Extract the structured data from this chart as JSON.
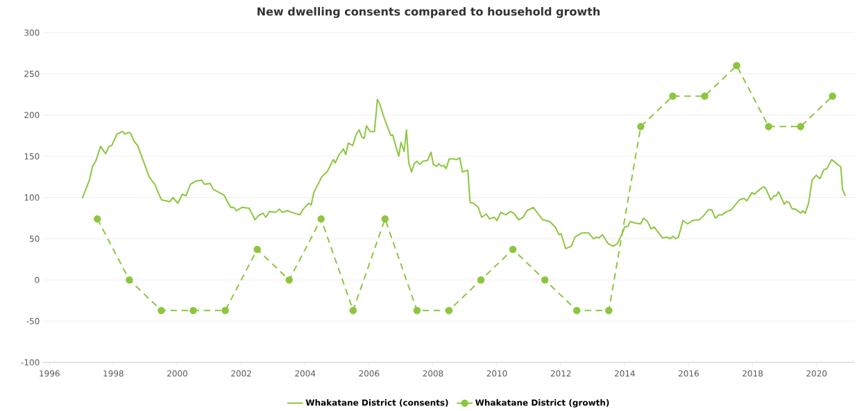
{
  "chart_data": {
    "type": "line",
    "title": "New dwelling consents compared to household growth",
    "xlim": [
      1995.8,
      2021.2
    ],
    "xticks": [
      1996,
      1998,
      2000,
      2002,
      2004,
      2006,
      2008,
      2010,
      2012,
      2014,
      2016,
      2018,
      2020
    ],
    "ylim": [
      -100,
      300
    ],
    "yticks": [
      -100,
      -50,
      0,
      50,
      100,
      150,
      200,
      250,
      300
    ],
    "grid": "y",
    "legend": "bottom",
    "series": [
      {
        "name": "Whakatane District (consents)",
        "color": "#8cc63e",
        "marker": "none",
        "line_style": "solid",
        "x": [
          1997.03,
          1997.25,
          1997.35,
          1997.45,
          1997.6,
          1997.76,
          1997.86,
          1997.95,
          1998.11,
          1998.29,
          1998.36,
          1998.47,
          1998.54,
          1998.65,
          1998.76,
          1998.97,
          1999.12,
          1999.3,
          1999.39,
          1999.51,
          1999.77,
          1999.86,
          2000.02,
          2000.16,
          2000.27,
          2000.41,
          2000.59,
          2000.77,
          2000.85,
          2001.03,
          2001.12,
          2001.46,
          2001.67,
          2001.77,
          2001.85,
          2002.03,
          2002.25,
          2002.43,
          2002.54,
          2002.68,
          2002.77,
          2002.88,
          2003.08,
          2003.19,
          2003.29,
          2003.44,
          2003.58,
          2003.83,
          2003.94,
          2004.12,
          2004.19,
          2004.27,
          2004.52,
          2004.7,
          2004.88,
          2004.94,
          2005.06,
          2005.2,
          2005.27,
          2005.35,
          2005.49,
          2005.6,
          2005.69,
          2005.78,
          2005.85,
          2005.92,
          2006.03,
          2006.17,
          2006.26,
          2006.33,
          2006.46,
          2006.68,
          2006.74,
          2006.84,
          2006.93,
          2007.0,
          2007.1,
          2007.17,
          2007.24,
          2007.33,
          2007.41,
          2007.5,
          2007.58,
          2007.69,
          2007.83,
          2007.94,
          2008.01,
          2008.12,
          2008.18,
          2008.26,
          2008.34,
          2008.41,
          2008.51,
          2008.62,
          2008.73,
          2008.84,
          2008.92,
          2009.09,
          2009.16,
          2009.27,
          2009.42,
          2009.52,
          2009.67,
          2009.77,
          2009.92,
          2010.0,
          2010.12,
          2010.28,
          2010.42,
          2010.53,
          2010.68,
          2010.82,
          2010.94,
          2011.14,
          2011.43,
          2011.65,
          2011.83,
          2011.94,
          2012.01,
          2012.15,
          2012.33,
          2012.44,
          2012.65,
          2012.87,
          2013.02,
          2013.12,
          2013.2,
          2013.3,
          2013.48,
          2013.63,
          2013.77,
          2013.95,
          2013.99,
          2014.1,
          2014.17,
          2014.31,
          2014.49,
          2014.59,
          2014.71,
          2014.82,
          2014.92,
          2015.18,
          2015.32,
          2015.43,
          2015.5,
          2015.59,
          2015.68,
          2015.82,
          2015.97,
          2016.11,
          2016.33,
          2016.47,
          2016.61,
          2016.72,
          2016.83,
          2016.94,
          2017.04,
          2017.19,
          2017.33,
          2017.58,
          2017.73,
          2017.82,
          2017.98,
          2018.05,
          2018.23,
          2018.34,
          2018.41,
          2018.57,
          2018.67,
          2018.74,
          2018.81,
          2018.99,
          2019.06,
          2019.14,
          2019.24,
          2019.34,
          2019.5,
          2019.57,
          2019.64,
          2019.75,
          2019.86,
          2019.99,
          2020.11,
          2020.23,
          2020.32,
          2020.47,
          2020.76,
          2020.81,
          2020.9
        ],
        "values": [
          99,
          121,
          138,
          144,
          162,
          153,
          162,
          163,
          177,
          180,
          177,
          179,
          178,
          168,
          163,
          141,
          125,
          116,
          107,
          97,
          95,
          100,
          93,
          104,
          102,
          116,
          120,
          121,
          116,
          117,
          110,
          103,
          88,
          88,
          84,
          88,
          87,
          73,
          78,
          81,
          76,
          83,
          82,
          86,
          82,
          84,
          82,
          79,
          86,
          93,
          91,
          106,
          125,
          132,
          146,
          142,
          152,
          159,
          152,
          166,
          163,
          177,
          182,
          173,
          172,
          187,
          180,
          180,
          219,
          214,
          198,
          175,
          176,
          162,
          150,
          167,
          156,
          182,
          142,
          131,
          141,
          144,
          140,
          144,
          145,
          155,
          140,
          138,
          141,
          138,
          139,
          135,
          147,
          147,
          146,
          148,
          131,
          133,
          94,
          93,
          88,
          76,
          80,
          74,
          76,
          72,
          82,
          79,
          83,
          81,
          73,
          76,
          84,
          88,
          73,
          71,
          64,
          55,
          56,
          38,
          41,
          52,
          57,
          57,
          50,
          52,
          51,
          55,
          44,
          41,
          44,
          59,
          64,
          65,
          71,
          69,
          68,
          75,
          71,
          62,
          64,
          51,
          52,
          50,
          53,
          50,
          52,
          72,
          68,
          72,
          73,
          78,
          85,
          85,
          75,
          79,
          79,
          83,
          85,
          97,
          99,
          96,
          106,
          104,
          110,
          113,
          111,
          97,
          102,
          102,
          107,
          92,
          95,
          94,
          86,
          86,
          81,
          84,
          81,
          93,
          121,
          127,
          123,
          134,
          135,
          146,
          137,
          110,
          102
        ]
      },
      {
        "name": "Whakatane District (growth)",
        "color": "#8cc63e",
        "marker": "circle",
        "line_style": "dashed",
        "x": [
          1997.5,
          1998.5,
          1999.5,
          2000.5,
          2001.5,
          2002.5,
          2003.5,
          2004.5,
          2005.5,
          2006.5,
          2007.5,
          2008.5,
          2009.5,
          2010.5,
          2011.5,
          2012.5,
          2013.5,
          2014.5,
          2015.5,
          2016.5,
          2017.5,
          2018.5,
          2019.5,
          2020.5
        ],
        "values": [
          74,
          0,
          -37,
          -37,
          -37,
          37,
          0,
          74,
          -37,
          74,
          -37,
          -37,
          0,
          37,
          0,
          -37,
          -37,
          186,
          223,
          223,
          260,
          186,
          186,
          223
        ]
      }
    ]
  }
}
